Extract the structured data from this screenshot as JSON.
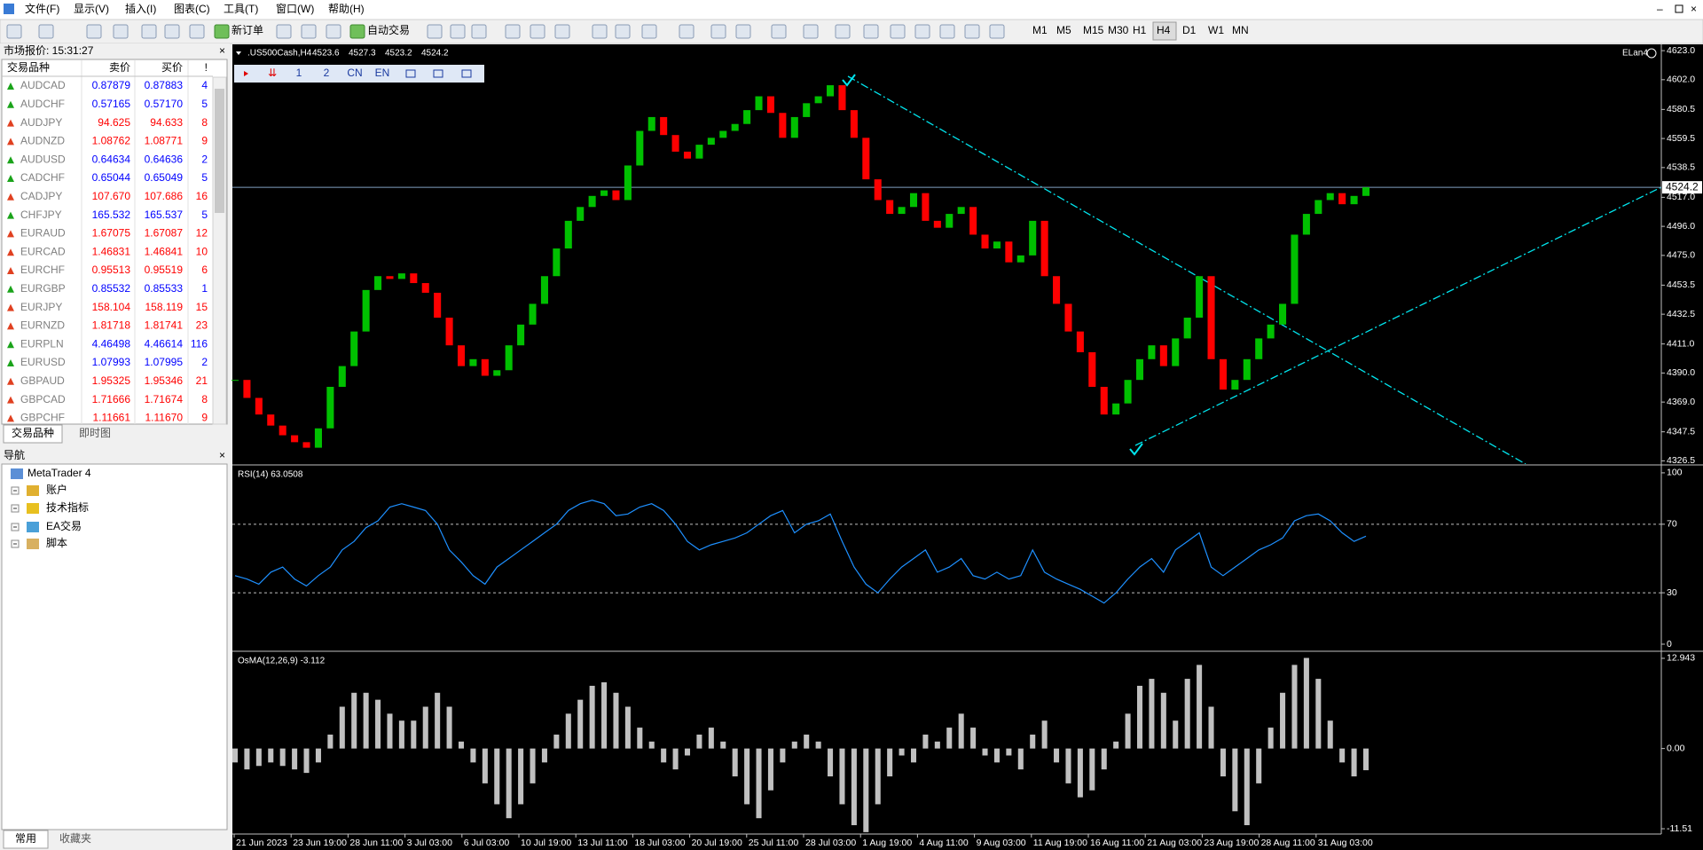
{
  "menu": [
    "文件(F)",
    "显示(V)",
    "插入(I)",
    "图表(C)",
    "工具(T)",
    "窗口(W)",
    "帮助(H)"
  ],
  "toolbar": {
    "new_order": "新订单",
    "auto_trading": "自动交易",
    "timeframes": [
      "M1",
      "M5",
      "M15",
      "M30",
      "H1",
      "H4",
      "D1",
      "W1",
      "MN"
    ],
    "active_timeframe": "H4"
  },
  "market_watch": {
    "title": "市场报价: 15:31:27",
    "columns": [
      "交易品种",
      "卖价",
      "买价",
      "!"
    ],
    "rows": [
      {
        "cells": [
          "AUDCAD",
          "0.87879",
          "0.87883",
          "4"
        ],
        "color": "#0000ff"
      },
      {
        "cells": [
          "AUDCHF",
          "0.57165",
          "0.57170",
          "5"
        ],
        "color": "#0000ff"
      },
      {
        "cells": [
          "AUDJPY",
          "94.625",
          "94.633",
          "8"
        ],
        "color": "#ff0000"
      },
      {
        "cells": [
          "AUDNZD",
          "1.08762",
          "1.08771",
          "9"
        ],
        "color": "#ff0000"
      },
      {
        "cells": [
          "AUDUSD",
          "0.64634",
          "0.64636",
          "2"
        ],
        "color": "#0000ff"
      },
      {
        "cells": [
          "CADCHF",
          "0.65044",
          "0.65049",
          "5"
        ],
        "color": "#0000ff"
      },
      {
        "cells": [
          "CADJPY",
          "107.670",
          "107.686",
          "16"
        ],
        "color": "#ff0000"
      },
      {
        "cells": [
          "CHFJPY",
          "165.532",
          "165.537",
          "5"
        ],
        "color": "#0000ff"
      },
      {
        "cells": [
          "EURAUD",
          "1.67075",
          "1.67087",
          "12"
        ],
        "color": "#ff0000"
      },
      {
        "cells": [
          "EURCAD",
          "1.46831",
          "1.46841",
          "10"
        ],
        "color": "#ff0000"
      },
      {
        "cells": [
          "EURCHF",
          "0.95513",
          "0.95519",
          "6"
        ],
        "color": "#ff0000"
      },
      {
        "cells": [
          "EURGBP",
          "0.85532",
          "0.85533",
          "1"
        ],
        "color": "#0000ff"
      },
      {
        "cells": [
          "EURJPY",
          "158.104",
          "158.119",
          "15"
        ],
        "color": "#ff0000"
      },
      {
        "cells": [
          "EURNZD",
          "1.81718",
          "1.81741",
          "23"
        ],
        "color": "#ff0000"
      },
      {
        "cells": [
          "EURPLN",
          "4.46498",
          "4.46614",
          "116"
        ],
        "color": "#0000ff"
      },
      {
        "cells": [
          "EURUSD",
          "1.07993",
          "1.07995",
          "2"
        ],
        "color": "#0000ff"
      },
      {
        "cells": [
          "GBPAUD",
          "1.95325",
          "1.95346",
          "21"
        ],
        "color": "#ff0000"
      },
      {
        "cells": [
          "GBPCAD",
          "1.71666",
          "1.71674",
          "8"
        ],
        "color": "#ff0000"
      },
      {
        "cells": [
          "GBPCHF",
          "1.11661",
          "1.11670",
          "9"
        ],
        "color": "#ff0000"
      }
    ],
    "tabs": [
      "交易品种",
      "即时图"
    ]
  },
  "navigator": {
    "title": "导航",
    "items": [
      "MetaTrader 4",
      "账户",
      "技术指标",
      "EA交易",
      "脚本"
    ],
    "tabs": [
      "常用",
      "收藏夹"
    ]
  },
  "chart_window": {
    "symbol": ".US500Cash,H4",
    "ohlc": [
      4523.6,
      4527.3,
      4523.2,
      4524.2
    ],
    "expert": "ELan4",
    "mini_toolbar": [
      "1",
      "2",
      "CN",
      "EN"
    ]
  },
  "chart_data": [
    {
      "type": "candlestick",
      "up_color": "#00c000",
      "down_color": "#ff0000",
      "bid_color": "#7f9fbf",
      "values": [
        4385,
        4372,
        4360,
        4352,
        4345,
        4340,
        4336,
        4350,
        4380,
        4395,
        4420,
        4450,
        4460,
        4458,
        4462,
        4455,
        4448,
        4430,
        4410,
        4395,
        4400,
        4388,
        4392,
        4410,
        4425,
        4440,
        4460,
        4480,
        4500,
        4510,
        4518,
        4522,
        4515,
        4540,
        4565,
        4575,
        4562,
        4550,
        4545,
        4555,
        4560,
        4565,
        4570,
        4580,
        4590,
        4578,
        4560,
        4575,
        4585,
        4590,
        4598,
        4580,
        4560,
        4530,
        4515,
        4505,
        4510,
        4520,
        4500,
        4495,
        4505,
        4510,
        4490,
        4480,
        4485,
        4470,
        4475,
        4500,
        4460,
        4440,
        4420,
        4405,
        4380,
        4360,
        4368,
        4385,
        4400,
        4410,
        4395,
        4415,
        4430,
        4460,
        4400,
        4378,
        4385,
        4400,
        4415,
        4425,
        4440,
        4490,
        4505,
        4515,
        4520,
        4512,
        4518,
        4524.2
      ],
      "ylim": [
        4324.2,
        4626.9
      ],
      "yticks": [
        {
          "value": 4623,
          "label": "4623.0"
        },
        {
          "value": 4602,
          "label": "4602.0"
        },
        4580.5,
        4559.5,
        4538.5,
        {
          "value": 4517,
          "label": "4517.0"
        },
        {
          "value": 4496,
          "label": "4496.0"
        },
        {
          "value": 4475,
          "label": "4475.0"
        },
        4453.5,
        4432.5,
        {
          "value": 4411,
          "label": "4411.0"
        },
        {
          "value": 4390,
          "label": "4390.0"
        },
        {
          "value": 4369,
          "label": "4369.0"
        },
        4347.5,
        4326.5
      ]
    },
    {
      "type": "line",
      "title": "RSI(14) 63.0508",
      "color": "#1e90ff",
      "values": [
        40,
        38,
        35,
        42,
        45,
        38,
        34,
        40,
        45,
        55,
        60,
        68,
        72,
        80,
        82,
        80,
        78,
        70,
        55,
        48,
        40,
        35,
        45,
        50,
        55,
        60,
        65,
        70,
        78,
        82,
        84,
        82,
        75,
        76,
        80,
        82,
        78,
        70,
        60,
        55,
        58,
        60,
        62,
        65,
        70,
        75,
        78,
        65,
        70,
        72,
        76,
        60,
        45,
        35,
        30,
        38,
        45,
        50,
        55,
        42,
        45,
        50,
        40,
        38,
        42,
        38,
        40,
        55,
        42,
        38,
        35,
        32,
        28,
        24,
        30,
        38,
        45,
        50,
        42,
        55,
        60,
        65,
        45,
        40,
        45,
        50,
        55,
        58,
        62,
        72,
        75,
        76,
        72,
        65,
        60,
        63.0508
      ],
      "ylim": [
        -3.1,
        104.1
      ],
      "yticks": [
        100,
        70,
        30,
        0
      ],
      "levels": [
        70,
        30
      ]
    },
    {
      "type": "bar",
      "title": "OsMA(12,26,9) -3.112",
      "color": "#c0c0c0",
      "values": [
        -2,
        -3,
        -2.5,
        -2,
        -2.5,
        -3,
        -3.5,
        -2,
        2,
        6,
        8,
        8,
        7,
        5,
        4,
        4,
        6,
        8,
        6,
        1,
        -2,
        -5,
        -8,
        -10,
        -8,
        -5,
        -2,
        2,
        5,
        7,
        9,
        9.5,
        8,
        6,
        3,
        1,
        -2,
        -3,
        -1,
        2,
        3,
        1,
        -4,
        -8,
        -10,
        -6,
        -2,
        1,
        2,
        1,
        -4,
        -8,
        -11,
        -12,
        -8,
        -4,
        -1,
        -2,
        2,
        1,
        3,
        5,
        3,
        -1,
        -2,
        -1,
        -3,
        2,
        4,
        -2,
        -5,
        -7,
        -6,
        -3,
        1,
        5,
        9,
        10,
        8,
        4,
        10,
        12,
        6,
        -4,
        -9,
        -11,
        -5,
        3,
        8,
        12,
        13,
        10,
        4,
        -2,
        -4,
        -3.112
      ],
      "ylim": [
        -12.27,
        13.83
      ],
      "yticks": [
        12.943,
        {
          "value": 0,
          "label": "0.00"
        },
        -11.51
      ],
      "xtick_labels": [
        "21 Jun 2023",
        "23 Jun 19:00",
        "28 Jun 11:00",
        "3 Jul 03:00",
        "6 Jul 03:00",
        "10 Jul 19:00",
        "13 Jul 11:00",
        "18 Jul 03:00",
        "20 Jul 19:00",
        "25 Jul 11:00",
        "28 Jul 03:00",
        "1 Aug 19:00",
        "4 Aug 11:00",
        "9 Aug 03:00",
        "11 Aug 19:00",
        "16 Aug 11:00",
        "21 Aug 03:00",
        "23 Aug 19:00",
        "28 Aug 11:00",
        "31 Aug 03:00"
      ]
    }
  ]
}
